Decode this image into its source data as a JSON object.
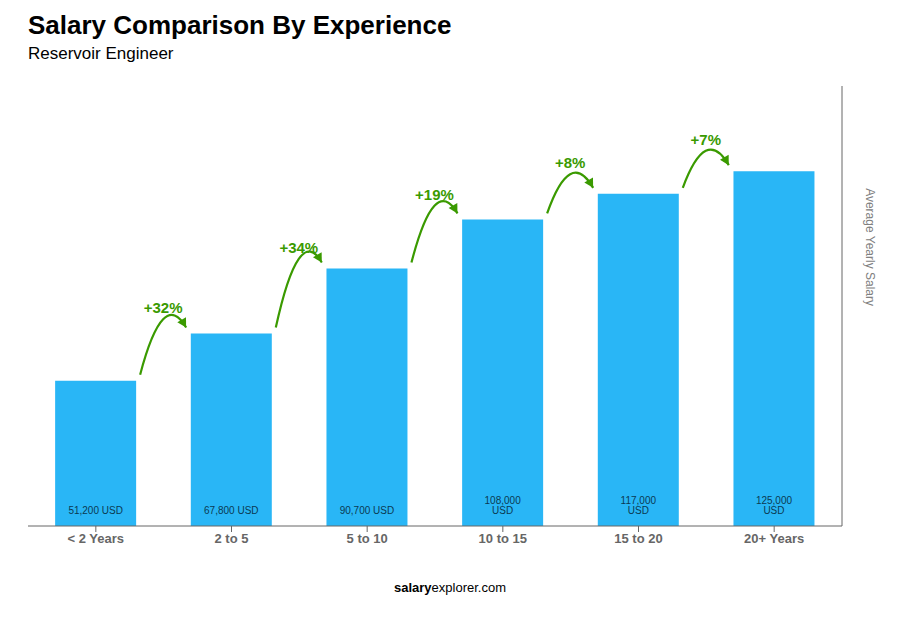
{
  "chart_data": {
    "type": "bar",
    "title": "Salary Comparison By Experience",
    "subtitle": "Reservoir Engineer",
    "ylabel": "Average Yearly Salary",
    "footer_bold": "salary",
    "footer_normal": "explorer.com",
    "categories": [
      "< 2 Years",
      "2 to 5",
      "5 to 10",
      "10 to 15",
      "15 to 20",
      "20+ Years"
    ],
    "values": [
      51200,
      67800,
      90700,
      108000,
      117000,
      125000
    ],
    "value_labels": [
      "51,200 USD",
      "67,800 USD",
      "90,700 USD",
      "108,000 USD",
      "117,000 USD",
      "125,000 USD"
    ],
    "data_labels": true,
    "annotations": [
      "+32%",
      "+34%",
      "+19%",
      "+8%",
      "+7%"
    ],
    "color": "#29B6F6",
    "ylim": [
      0,
      155000
    ],
    "tick_labels": "x",
    "grid": false
  }
}
